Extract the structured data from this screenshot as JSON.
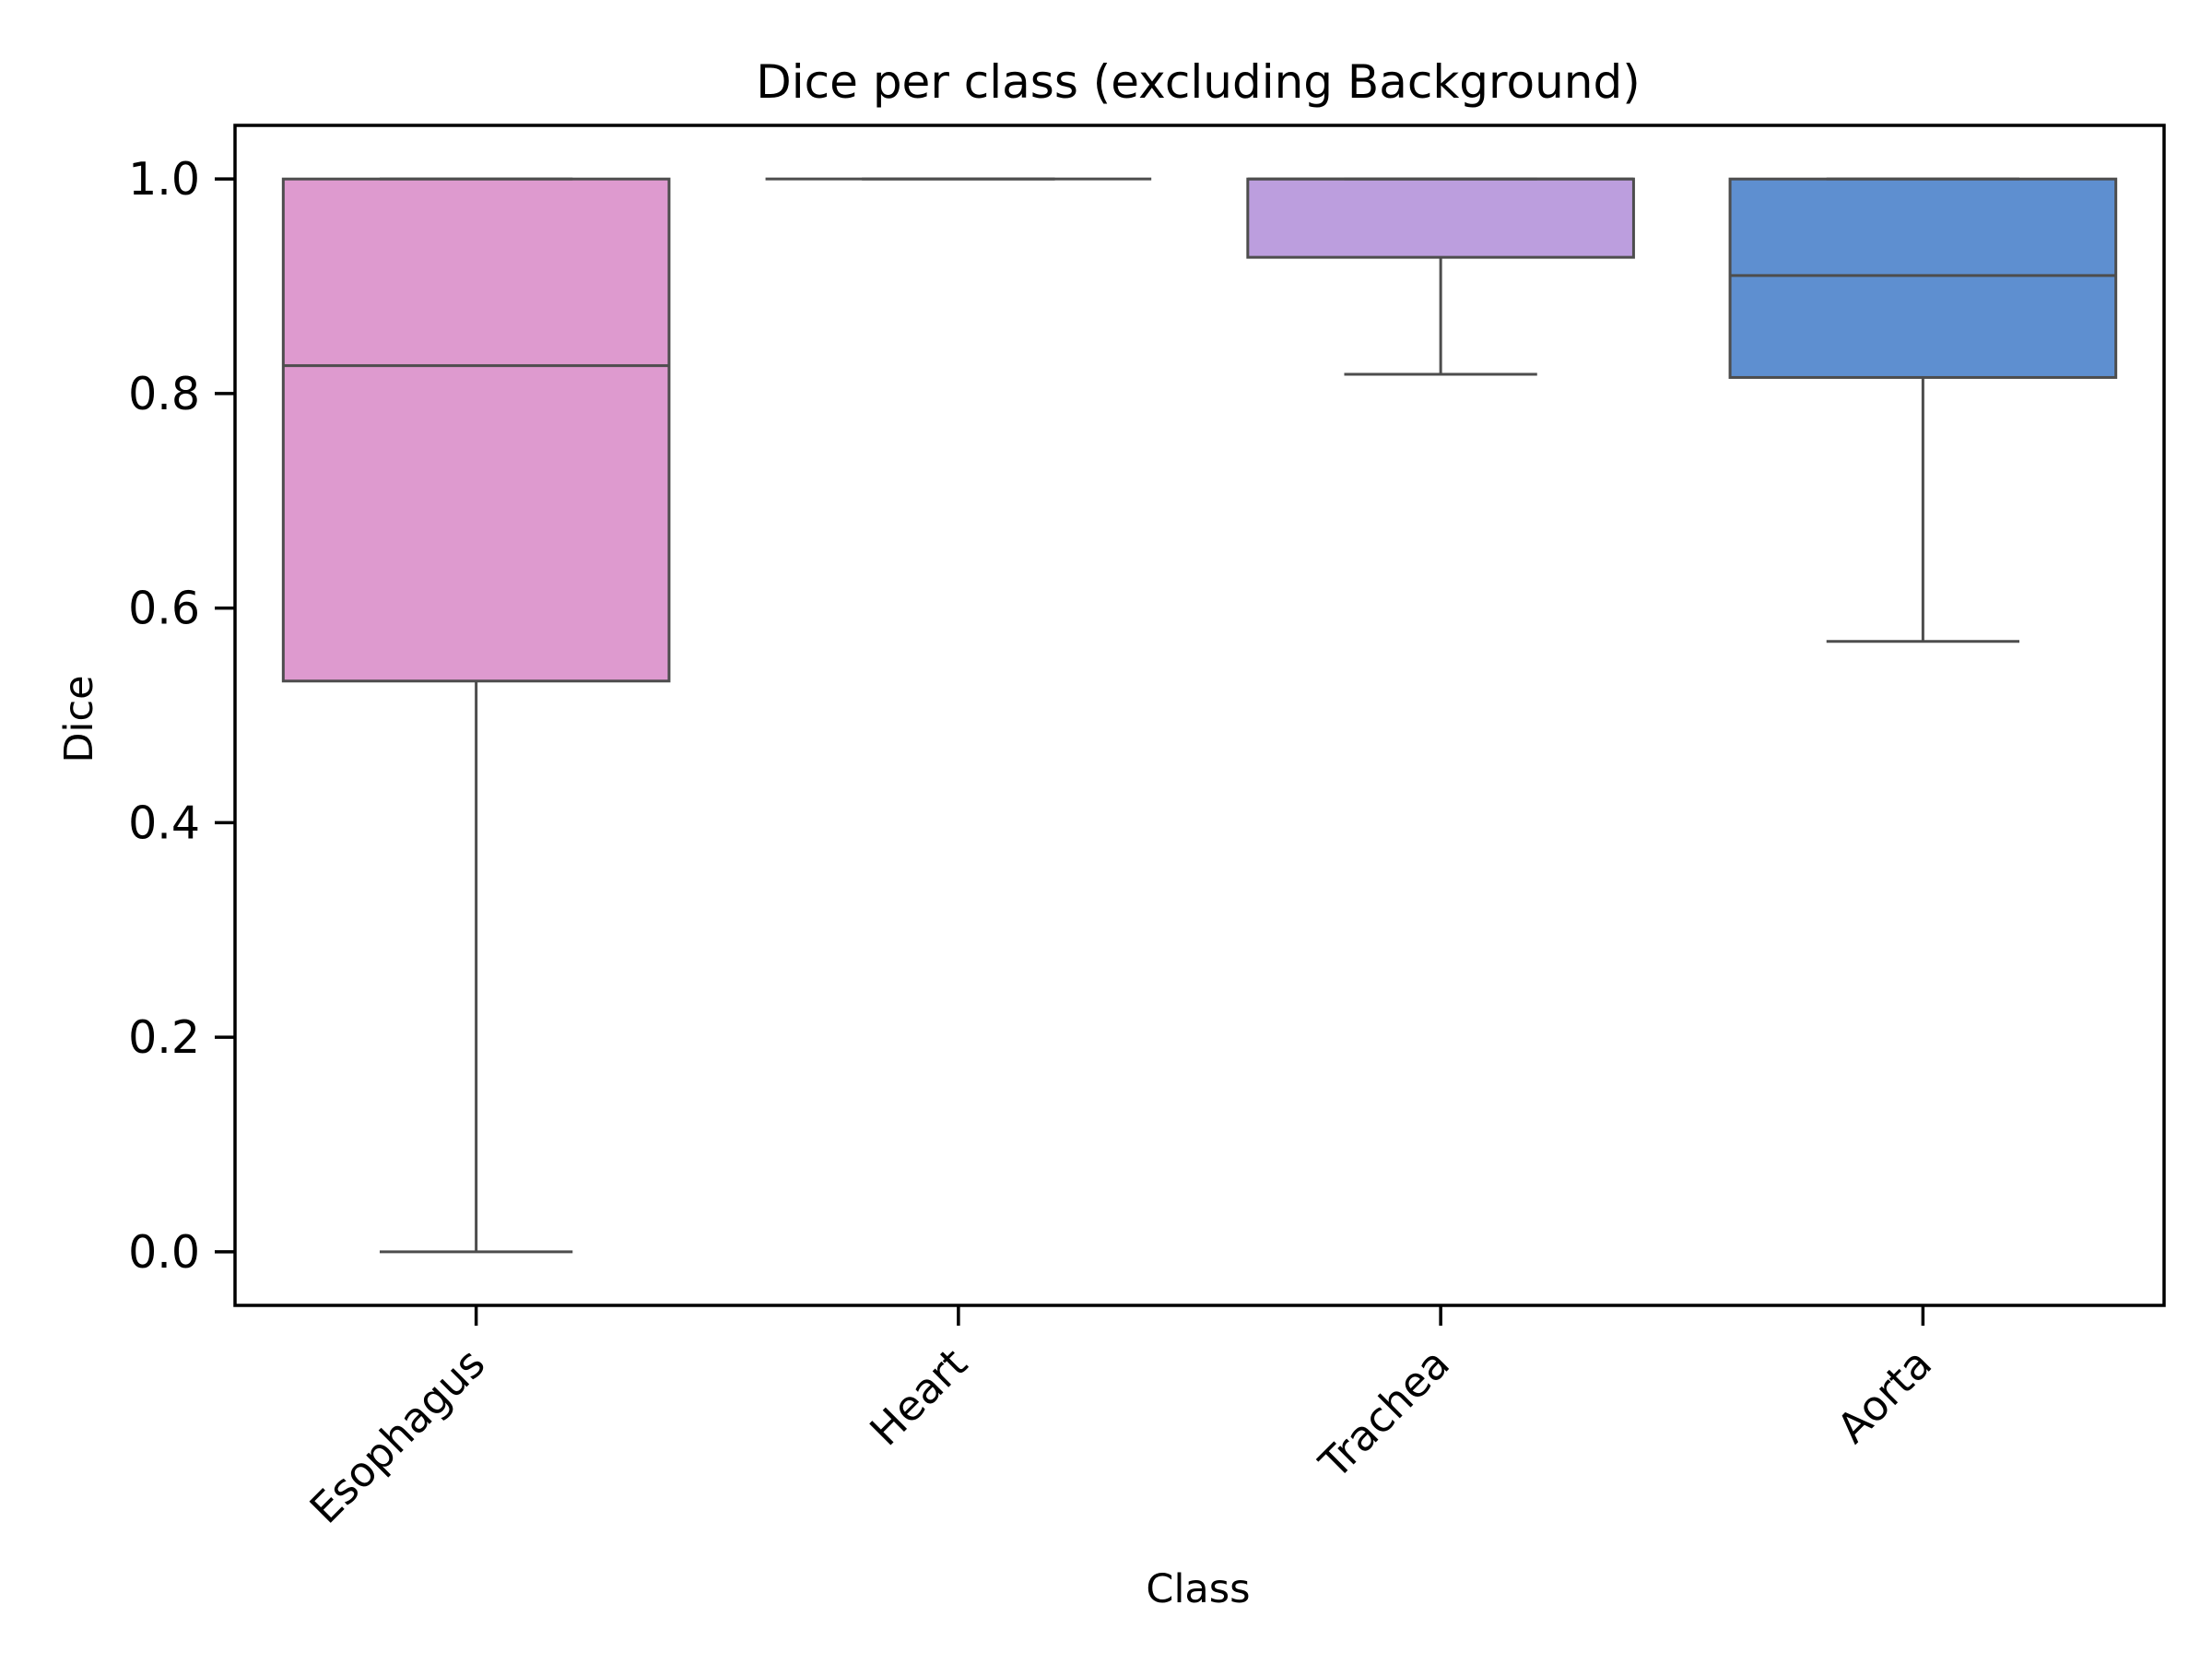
{
  "chart_data": {
    "type": "box",
    "title": "Dice per class (excluding Background)",
    "xlabel": "Class",
    "ylabel": "Dice",
    "ylim": [
      -0.05,
      1.05
    ],
    "yticks": [
      "0.0",
      "0.2",
      "0.4",
      "0.6",
      "0.8",
      "1.0"
    ],
    "grid": false,
    "categories": [
      "Esophagus",
      "Heart",
      "Trachea",
      "Aorta"
    ],
    "boxes": [
      {
        "name": "Esophagus",
        "whisker_low": 0.0,
        "q1": 0.532,
        "median": 0.826,
        "q3": 1.0,
        "whisker_high": 1.0,
        "color": "#DE9ACF"
      },
      {
        "name": "Heart",
        "whisker_low": 1.0,
        "q1": 1.0,
        "median": 1.0,
        "q3": 1.0,
        "whisker_high": 1.0,
        "color": "#DE9ACF"
      },
      {
        "name": "Trachea",
        "whisker_low": 0.818,
        "q1": 0.927,
        "median": 1.0,
        "q3": 1.0,
        "whisker_high": 1.0,
        "color": "#BC9EDE"
      },
      {
        "name": "Aorta",
        "whisker_low": 0.569,
        "q1": 0.815,
        "median": 0.91,
        "q3": 1.0,
        "whisker_high": 1.0,
        "color": "#5E8FD0"
      }
    ]
  }
}
